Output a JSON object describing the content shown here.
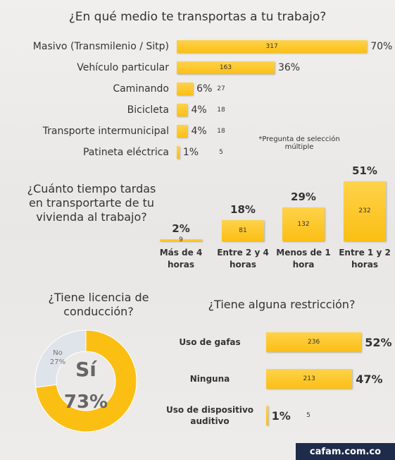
{
  "chart_data": [
    {
      "type": "bar",
      "orientation": "horizontal",
      "title": "¿En qué medio te transportas a tu trabajo?",
      "categories": [
        "Masivo (Transmilenio / Sitp)",
        "Vehículo particular",
        "Caminando",
        "Bicicleta",
        "Transporte intermunicipal",
        "Patineta eléctrica"
      ],
      "values": [
        70,
        36,
        6,
        4,
        4,
        1
      ],
      "value_labels": [
        "70%",
        "36%",
        "6%",
        "4%",
        "4%",
        "1%"
      ],
      "counts": [
        317,
        163,
        27,
        18,
        18,
        5
      ],
      "color": "#fbbf14",
      "note": "*Pregunta de selección múltiple"
    },
    {
      "type": "bar",
      "orientation": "vertical",
      "title": "¿Cuánto tiempo tardas en transportarte de tu vivienda al trabajo?",
      "categories": [
        "Más de 4 horas",
        "Entre 2 y 4 horas",
        "Menos de 1 hora",
        "Entre 1 y 2 horas"
      ],
      "values": [
        2,
        18,
        29,
        51
      ],
      "value_labels": [
        "2%",
        "18%",
        "29%",
        "51%"
      ],
      "counts": [
        9,
        81,
        132,
        232
      ],
      "color": "#fbbf14"
    },
    {
      "type": "donut",
      "title": "¿Tiene licencia de conducción?",
      "categories": [
        "Sí",
        "No"
      ],
      "values": [
        73,
        27
      ],
      "value_labels": [
        "73%",
        "27%"
      ],
      "colors": [
        "#fbbf14",
        "#dfe3ea"
      ]
    },
    {
      "type": "bar",
      "orientation": "horizontal",
      "title": "¿Tiene alguna restricción?",
      "categories": [
        "Uso de gafas",
        "Ninguna",
        "Uso de dispositivo auditivo"
      ],
      "values": [
        52,
        47,
        1
      ],
      "value_labels": [
        "52%",
        "47%",
        "1%"
      ],
      "counts": [
        236,
        213,
        5
      ],
      "color": "#fbbf14"
    }
  ],
  "footer": "cafam.com.co"
}
